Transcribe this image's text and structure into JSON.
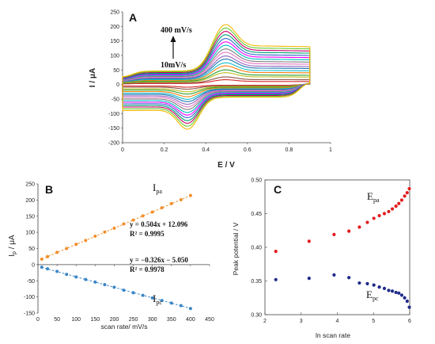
{
  "chart_data": [
    {
      "id": "A",
      "type": "line",
      "panel_label": "A",
      "xlabel": "E / V",
      "ylabel": "I / μA",
      "xlim": [
        0,
        1
      ],
      "ylim": [
        -200,
        250
      ],
      "xticks": [
        "0",
        "0.2",
        "0.4",
        "0.6",
        "0.8",
        "1"
      ],
      "yticks": [
        "-200",
        "-150",
        "-100",
        "-50",
        "0",
        "50",
        "100",
        "150",
        "200",
        "250"
      ],
      "annotations": {
        "top": "400 mV/s",
        "bottom": "10mV/s"
      },
      "cv": {
        "E_start": 0.0,
        "E_end": 0.9,
        "Epa": 0.48,
        "Epc": 0.32
      },
      "series": [
        {
          "rate": 10,
          "ipa": 17,
          "ipc": -8,
          "color": "#d62728"
        },
        {
          "rate": 25,
          "ipa": 27,
          "ipc": -14,
          "color": "#8c564b"
        },
        {
          "rate": 50,
          "ipa": 42,
          "ipc": -22,
          "color": "#bcbd22"
        },
        {
          "rate": 75,
          "ipa": 52,
          "ipc": -29,
          "color": "#2ca02c"
        },
        {
          "rate": 100,
          "ipa": 66,
          "ipc": -37,
          "color": "#ff7f0e"
        },
        {
          "rate": 125,
          "ipa": 77,
          "ipc": -45,
          "color": "#17becf"
        },
        {
          "rate": 150,
          "ipa": 90,
          "ipc": -52,
          "color": "#1f77b4"
        },
        {
          "rate": 175,
          "ipa": 101,
          "ipc": -60,
          "color": "#9467bd"
        },
        {
          "rate": 200,
          "ipa": 114,
          "ipc": -68,
          "color": "#e377c2"
        },
        {
          "rate": 225,
          "ipa": 126,
          "ipc": -76,
          "color": "#7f7f7f"
        },
        {
          "rate": 250,
          "ipa": 139,
          "ipc": -85,
          "color": "#00bfbf"
        },
        {
          "rate": 275,
          "ipa": 151,
          "ipc": -93,
          "color": "#ff00ff"
        },
        {
          "rate": 300,
          "ipa": 163,
          "ipc": -101,
          "color": "#3366cc"
        },
        {
          "rate": 325,
          "ipa": 176,
          "ipc": -110,
          "color": "#009e73"
        },
        {
          "rate": 350,
          "ipa": 188,
          "ipc": -118,
          "color": "#cc0066"
        },
        {
          "rate": 375,
          "ipa": 200,
          "ipc": -127,
          "color": "#66cc33"
        },
        {
          "rate": 400,
          "ipa": 212,
          "ipc": -136,
          "color": "#f5b800"
        }
      ]
    },
    {
      "id": "B",
      "type": "scatter",
      "panel_label": "B",
      "xlabel": "scan rate/ mV/s",
      "ylabel_main": "I",
      "ylabel_sub": "p",
      "ylabel_unit": " / μA",
      "xlim": [
        0,
        450
      ],
      "ylim": [
        -150,
        250
      ],
      "xticks": [
        "0",
        "50",
        "100",
        "150",
        "200",
        "250",
        "300",
        "350",
        "400",
        "450"
      ],
      "yticks": [
        "-150",
        "-100",
        "-50",
        "0",
        "50",
        "100",
        "150",
        "200",
        "250"
      ],
      "x": [
        10,
        25,
        50,
        75,
        100,
        125,
        150,
        175,
        200,
        225,
        250,
        275,
        300,
        325,
        350,
        375,
        400
      ],
      "series": [
        {
          "main": "I",
          "sub": "pa",
          "color": "#f28e2b",
          "slope": 0.504,
          "intercept": 12.096,
          "equation": "y = 0.504x + 12.096",
          "r2": "R² = 0.9995",
          "y": [
            17,
            25,
            38,
            50,
            63,
            75,
            88,
            101,
            113,
            126,
            138,
            151,
            163,
            176,
            189,
            201,
            214
          ]
        },
        {
          "main": "I",
          "sub": "pc",
          "color": "#3a86c8",
          "slope": -0.326,
          "intercept": -5.05,
          "equation": "y = −0.326x − 5.050",
          "r2": "R² = 0.9978",
          "y": [
            -8,
            -13,
            -21,
            -30,
            -38,
            -46,
            -54,
            -62,
            -70,
            -79,
            -87,
            -95,
            -103,
            -111,
            -119,
            -127,
            -136
          ]
        }
      ]
    },
    {
      "id": "C",
      "type": "scatter",
      "panel_label": "C",
      "xlabel": "ln scan rate",
      "ylabel": "Peak potential / V",
      "xlim": [
        2,
        6
      ],
      "ylim": [
        0.3,
        0.5
      ],
      "xticks": [
        "2",
        "3",
        "4",
        "5",
        "6"
      ],
      "yticks": [
        "0.30",
        "0.35",
        "0.40",
        "0.45",
        "0.50"
      ],
      "x": [
        2.3,
        3.22,
        3.91,
        4.32,
        4.61,
        4.83,
        5.01,
        5.16,
        5.3,
        5.42,
        5.52,
        5.62,
        5.7,
        5.78,
        5.86,
        5.93,
        5.99
      ],
      "series": [
        {
          "main": "E",
          "sub": "pa",
          "color": "#e31a1c",
          "y": [
            0.394,
            0.409,
            0.419,
            0.424,
            0.43,
            0.437,
            0.443,
            0.447,
            0.45,
            0.453,
            0.457,
            0.461,
            0.465,
            0.47,
            0.476,
            0.481,
            0.487
          ]
        },
        {
          "main": "E",
          "sub": "pc",
          "color": "#1f2a8a",
          "y": [
            0.352,
            0.354,
            0.359,
            0.355,
            0.347,
            0.346,
            0.344,
            0.341,
            0.339,
            0.336,
            0.335,
            0.333,
            0.332,
            0.329,
            0.325,
            0.32,
            0.311
          ]
        }
      ]
    }
  ]
}
